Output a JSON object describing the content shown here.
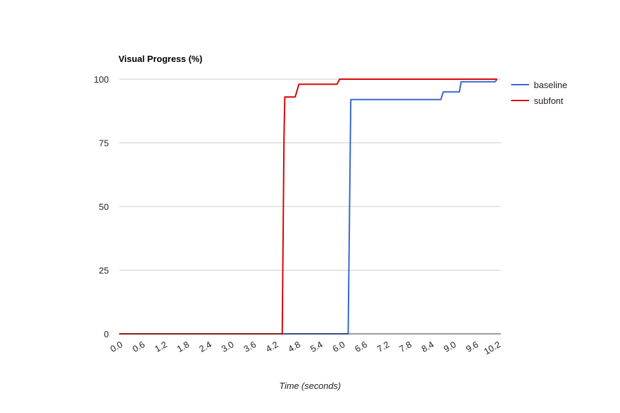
{
  "chart_data": {
    "type": "line",
    "title": "Visual Progress (%)",
    "xlabel": "Time (seconds)",
    "ylabel": "",
    "xlim": [
      0,
      10.3
    ],
    "ylim": [
      0,
      100
    ],
    "x_ticks": [
      "0.0",
      "0.6",
      "1.2",
      "1.8",
      "2.4",
      "3.0",
      "3.6",
      "4.2",
      "4.8",
      "5.4",
      "6.0",
      "6.6",
      "7.2",
      "7.8",
      "8.4",
      "9.0",
      "9.6",
      "10.2"
    ],
    "y_ticks": [
      "0",
      "25",
      "50",
      "75",
      "100"
    ],
    "grid": true,
    "legend_position": "right",
    "series": [
      {
        "name": "baseline",
        "color": "#3366cc",
        "points": [
          [
            0,
            0
          ],
          [
            6.18,
            0
          ],
          [
            6.25,
            92
          ],
          [
            8.68,
            92
          ],
          [
            8.75,
            95
          ],
          [
            9.18,
            95
          ],
          [
            9.23,
            99
          ],
          [
            10.15,
            99
          ],
          [
            10.2,
            100
          ]
        ]
      },
      {
        "name": "subfont",
        "color": "#dc0000",
        "points": [
          [
            0,
            0
          ],
          [
            4.4,
            0
          ],
          [
            4.45,
            78
          ],
          [
            4.47,
            93
          ],
          [
            4.75,
            93
          ],
          [
            4.85,
            98
          ],
          [
            5.88,
            98
          ],
          [
            5.95,
            100
          ],
          [
            10.2,
            100
          ]
        ]
      }
    ]
  }
}
